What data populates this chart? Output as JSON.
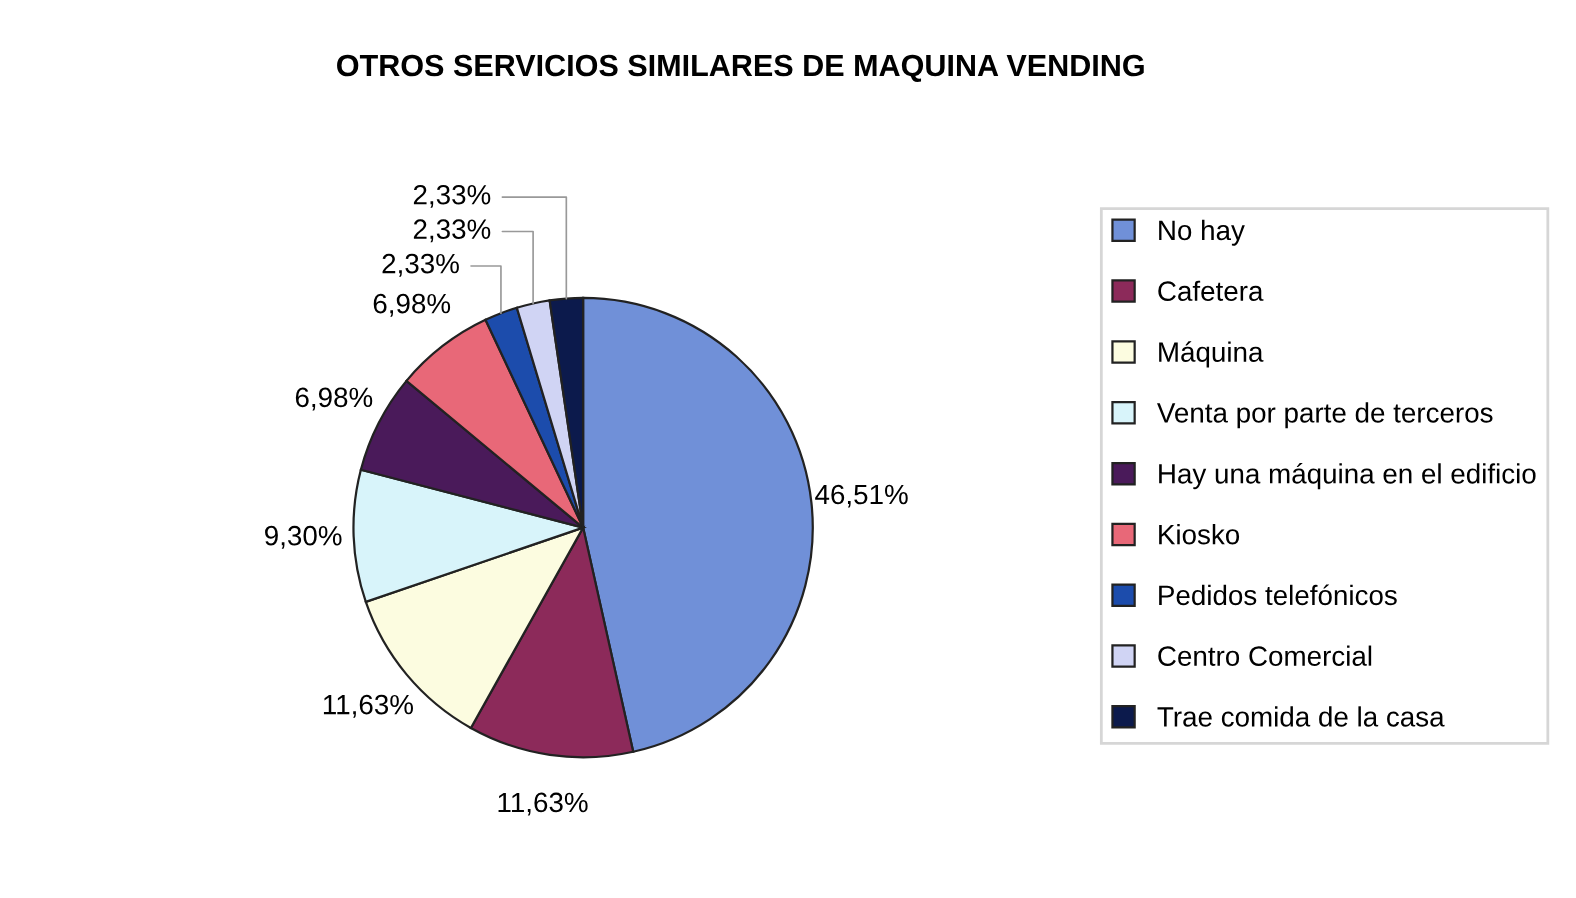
{
  "chart_data": {
    "type": "pie",
    "title": "OTROS SERVICIOS SIMILARES DE MAQUINA VENDING",
    "categories": [
      "No hay",
      "Cafetera",
      "Máquina",
      "Venta por parte de terceros",
      "Hay una máquina en el edificio",
      "Kiosko",
      "Pedidos telefónicos",
      "Centro Comercial",
      "Trae comida de la casa"
    ],
    "values": [
      46.51,
      11.63,
      11.63,
      9.3,
      6.98,
      6.98,
      2.33,
      2.33,
      2.33
    ],
    "value_labels": [
      "46,51%",
      "11,63%",
      "11,63%",
      "9,30%",
      "6,98%",
      "6,98%",
      "2,33%",
      "2,33%",
      "2,33%"
    ],
    "colors": [
      "#7090d8",
      "#8c2a5a",
      "#fcfce0",
      "#d8f4fa",
      "#4a1a5a",
      "#e86878",
      "#1c4cac",
      "#d0d4f4",
      "#0c1a4c"
    ],
    "legend": "right"
  }
}
